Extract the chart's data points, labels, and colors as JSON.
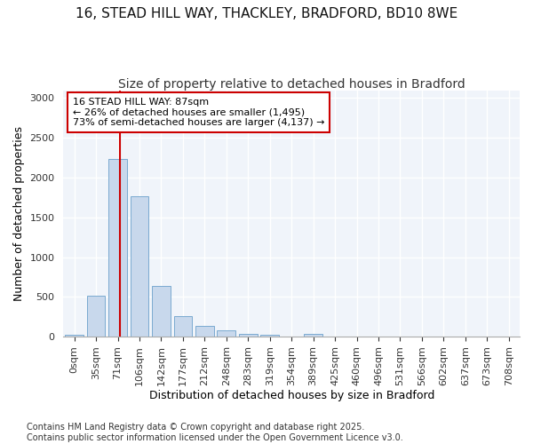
{
  "title_line1": "16, STEAD HILL WAY, THACKLEY, BRADFORD, BD10 8WE",
  "title_line2": "Size of property relative to detached houses in Bradford",
  "xlabel": "Distribution of detached houses by size in Bradford",
  "ylabel": "Number of detached properties",
  "bar_color": "#c8d8ec",
  "bar_edgecolor": "#7aaad0",
  "vline_color": "#cc0000",
  "vline_x": 2.1,
  "categories": [
    "0sqm",
    "35sqm",
    "71sqm",
    "106sqm",
    "142sqm",
    "177sqm",
    "212sqm",
    "248sqm",
    "283sqm",
    "319sqm",
    "354sqm",
    "389sqm",
    "425sqm",
    "460sqm",
    "496sqm",
    "531sqm",
    "566sqm",
    "602sqm",
    "637sqm",
    "673sqm",
    "708sqm"
  ],
  "values": [
    20,
    520,
    2230,
    1760,
    640,
    260,
    140,
    75,
    35,
    25,
    0,
    35,
    0,
    0,
    0,
    0,
    0,
    0,
    0,
    0,
    0
  ],
  "ylim": [
    0,
    3100
  ],
  "yticks": [
    0,
    500,
    1000,
    1500,
    2000,
    2500,
    3000
  ],
  "annotation_text": "16 STEAD HILL WAY: 87sqm\n← 26% of detached houses are smaller (1,495)\n73% of semi-detached houses are larger (4,137) →",
  "bg_color": "#f0f4fa",
  "fig_bg_color": "#ffffff",
  "footer": "Contains HM Land Registry data © Crown copyright and database right 2025.\nContains public sector information licensed under the Open Government Licence v3.0.",
  "grid_color": "#ffffff",
  "title_fontsize": 11,
  "label_fontsize": 9,
  "tick_fontsize": 8,
  "footer_fontsize": 7
}
